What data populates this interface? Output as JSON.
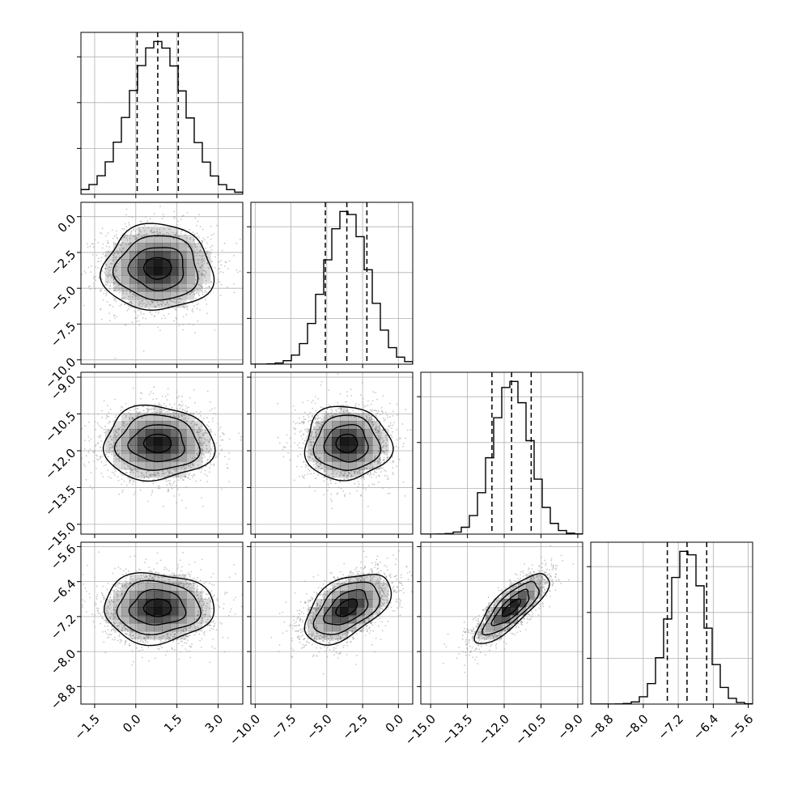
{
  "chart_data": {
    "type": "corner",
    "n_params": 4,
    "grid": true,
    "colors": {
      "line": "#000000",
      "grid": "#b0b0b0",
      "density": "#000000",
      "samples": "#9a9a9a"
    },
    "params": [
      {
        "mean": 0.8,
        "sd": 1.0,
        "lim": [
          -2.0,
          3.9
        ],
        "ticks": [
          -1.5,
          0.0,
          1.5,
          3.0
        ],
        "tick_labels": [
          "−1.5",
          "0.0",
          "1.5",
          "3.0"
        ],
        "quantiles": [
          0.05,
          0.8,
          1.55
        ]
      },
      {
        "mean": -3.6,
        "sd": 1.5,
        "lim": [
          -10.3,
          1.0
        ],
        "ticks": [
          -10.0,
          -7.5,
          -5.0,
          -2.5,
          0.0
        ],
        "tick_labels": [
          "−10.0",
          "−7.5",
          "−5.0",
          "−2.5",
          "0.0"
        ],
        "quantiles": [
          -5.1,
          -3.6,
          -2.2
        ]
      },
      {
        "mean": -11.7,
        "sd": 0.75,
        "lim": [
          -15.4,
          -8.8
        ],
        "ticks": [
          -15.0,
          -13.5,
          -12.0,
          -10.5,
          -9.0
        ],
        "tick_labels": [
          "−15.0",
          "−13.5",
          "−12.0",
          "−10.5",
          "−9.0"
        ],
        "quantiles": [
          -12.5,
          -11.7,
          -10.9
        ]
      },
      {
        "mean": -7.0,
        "sd": 0.4,
        "lim": [
          -9.2,
          -5.5
        ],
        "ticks": [
          -8.8,
          -8.0,
          -7.2,
          -6.4,
          -5.6
        ],
        "tick_labels": [
          "−8.8",
          "−8.0",
          "−7.2",
          "−6.4",
          "−5.6"
        ],
        "quantiles": [
          -7.45,
          -7.0,
          -6.55
        ]
      }
    ],
    "correlations": [
      [
        1.0,
        0.0,
        0.0,
        0.0
      ],
      [
        0.0,
        1.0,
        0.0,
        0.5
      ],
      [
        0.0,
        0.0,
        1.0,
        0.8
      ],
      [
        0.0,
        0.5,
        0.8,
        1.0
      ]
    ],
    "contour_levels_sigma": [
      0.5,
      1.0,
      1.5,
      2.0
    ],
    "hist_bins": 20,
    "density_bins": 20,
    "samples_per_panel": 2200
  }
}
